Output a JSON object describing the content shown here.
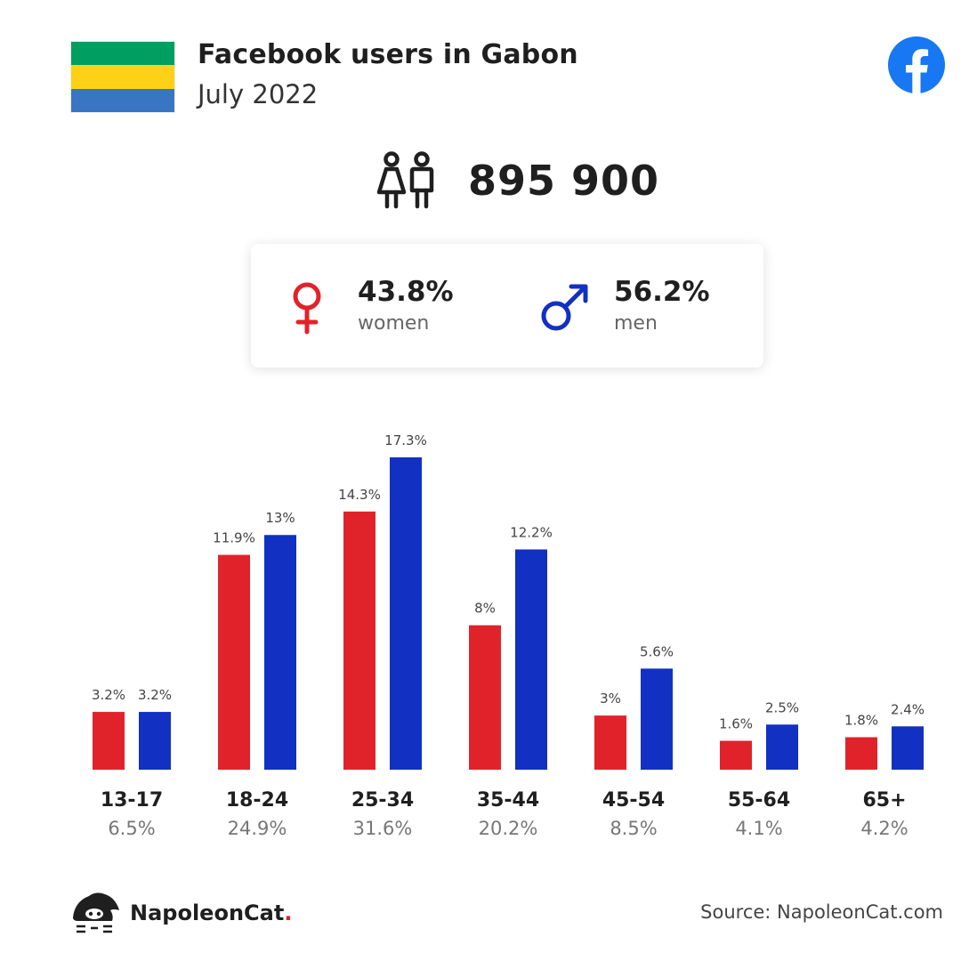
{
  "header": {
    "title": "Facebook users in Gabon",
    "subtitle": "July 2022",
    "flag_colors": [
      "#009e60",
      "#fcd116",
      "#3a75c4"
    ],
    "facebook_icon": "facebook-logo-icon",
    "facebook_color": "#1877f2"
  },
  "total": {
    "icon": "people-icon",
    "value": "895 900"
  },
  "gender": {
    "women": {
      "icon": "female-symbol-icon",
      "percent": "43.8%",
      "label": "women",
      "color": "#e0232b"
    },
    "men": {
      "icon": "male-symbol-icon",
      "percent": "56.2%",
      "label": "men",
      "color": "#1230c2"
    }
  },
  "chart_data": {
    "type": "bar",
    "categories": [
      "13-17",
      "18-24",
      "25-34",
      "35-44",
      "45-54",
      "55-64",
      "65+"
    ],
    "category_totals": [
      "6.5%",
      "24.9%",
      "31.6%",
      "20.2%",
      "8.5%",
      "4.1%",
      "4.2%"
    ],
    "series": [
      {
        "name": "women",
        "color": "#e0232b",
        "values": [
          3.2,
          11.9,
          14.3,
          8,
          3,
          1.6,
          1.8
        ],
        "labels": [
          "3.2%",
          "11.9%",
          "14.3%",
          "8%",
          "3%",
          "1.6%",
          "1.8%"
        ]
      },
      {
        "name": "men",
        "color": "#1230c2",
        "values": [
          3.2,
          13,
          17.3,
          12.2,
          5.6,
          2.5,
          2.4
        ],
        "labels": [
          "3.2%",
          "13%",
          "17.3%",
          "12.2%",
          "5.6%",
          "2.5%",
          "2.4%"
        ]
      }
    ],
    "title": "",
    "xlabel": "",
    "ylabel": "",
    "ylim": [
      0,
      17.3
    ],
    "grid": false,
    "legend": "none"
  },
  "footer": {
    "brand": "NapoleonCat",
    "brand_dot": ".",
    "brand_icon": "napoleoncat-logo-icon",
    "source": "Source: NapoleonCat.com"
  }
}
